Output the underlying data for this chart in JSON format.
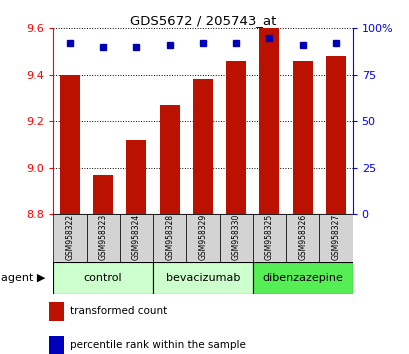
{
  "title": "GDS5672 / 205743_at",
  "samples": [
    "GSM958322",
    "GSM958323",
    "GSM958324",
    "GSM958328",
    "GSM958329",
    "GSM958330",
    "GSM958325",
    "GSM958326",
    "GSM958327"
  ],
  "bar_values": [
    9.4,
    8.97,
    9.12,
    9.27,
    9.38,
    9.46,
    9.605,
    9.46,
    9.48
  ],
  "percentile_values": [
    92,
    90,
    90,
    91,
    92,
    92,
    95,
    91,
    92
  ],
  "ylim_left": [
    8.8,
    9.6
  ],
  "ylim_right": [
    0,
    100
  ],
  "bar_color": "#BB1100",
  "dot_color": "#0000BB",
  "groups": [
    {
      "label": "control",
      "indices": [
        0,
        1,
        2
      ],
      "color": "#CCFFCC"
    },
    {
      "label": "bevacizumab",
      "indices": [
        3,
        4,
        5
      ],
      "color": "#CCFFCC"
    },
    {
      "label": "dibenzazepine",
      "indices": [
        6,
        7,
        8
      ],
      "color": "#55EE55"
    }
  ],
  "legend_bar_label": "transformed count",
  "legend_dot_label": "percentile rank within the sample",
  "left_yticks": [
    8.8,
    9.0,
    9.2,
    9.4,
    9.6
  ],
  "right_yticks": [
    0,
    25,
    50,
    75,
    100
  ],
  "right_yticklabels": [
    "0",
    "25",
    "50",
    "75",
    "100%"
  ]
}
